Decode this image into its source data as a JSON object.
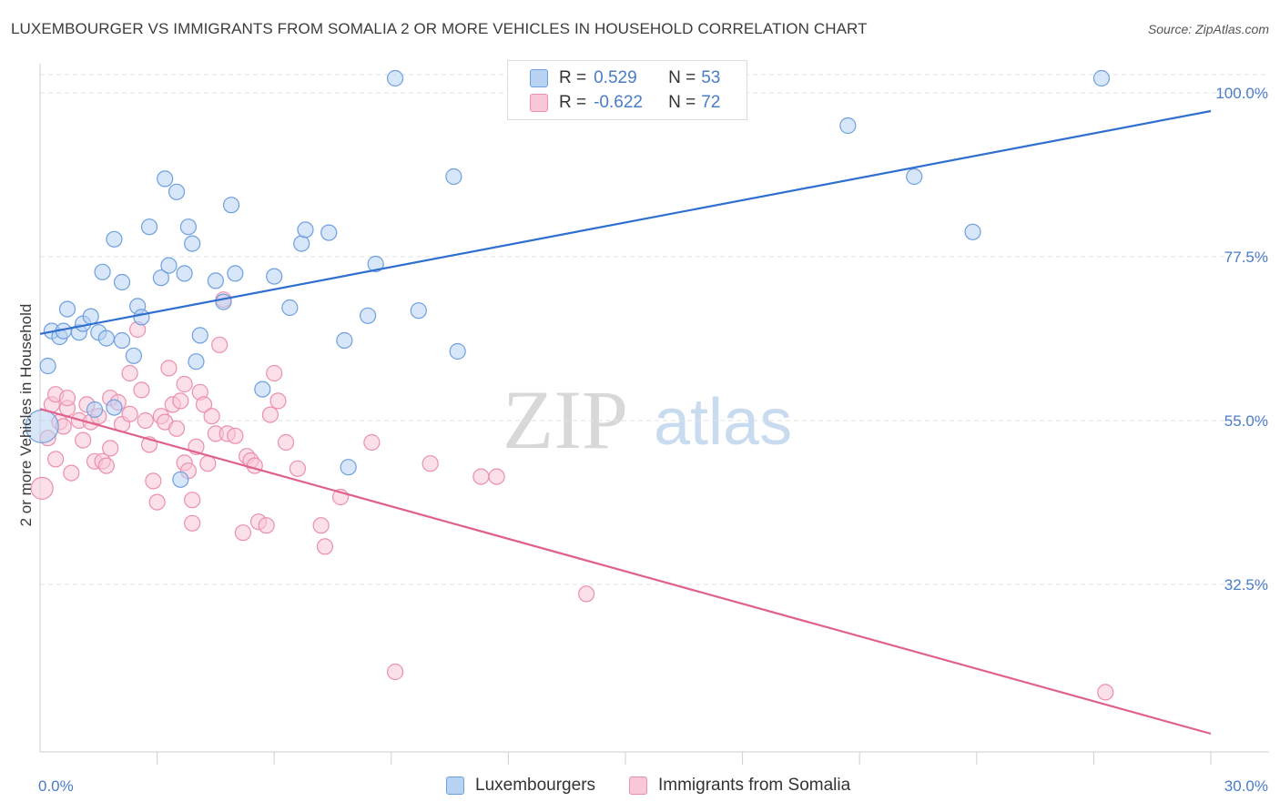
{
  "title": "LUXEMBOURGER VS IMMIGRANTS FROM SOMALIA 2 OR MORE VEHICLES IN HOUSEHOLD CORRELATION CHART",
  "source": "Source: ZipAtlas.com",
  "watermark": {
    "zip": "ZIP",
    "atlas": "atlas"
  },
  "legend_top": {
    "rows": [
      {
        "r_label": "R =",
        "r_value": "0.529",
        "n_label": "N =",
        "n_value": "53"
      },
      {
        "r_label": "R =",
        "r_value": "-0.622",
        "n_label": "N =",
        "n_value": "72"
      }
    ]
  },
  "legend_bottom": {
    "items": [
      {
        "label": "Luxembourgers"
      },
      {
        "label": "Immigrants from Somalia"
      }
    ]
  },
  "colors": {
    "blue_fill": "#b7d2f3",
    "blue_stroke": "#6f9fe0",
    "blue_line": "#2f6fcf",
    "pink_fill": "#f9c7d7",
    "pink_stroke": "#ec8fad",
    "pink_line": "#e0608e",
    "tick_text": "#4a7cc8",
    "grid": "#e2e2e2"
  },
  "chart_data": {
    "type": "scatter",
    "title": "LUXEMBOURGER VS IMMIGRANTS FROM SOMALIA 2 OR MORE VEHICLES IN HOUSEHOLD CORRELATION CHART",
    "xlabel": "",
    "ylabel": "2 or more Vehicles in Household",
    "xlim": [
      0,
      30
    ],
    "ylim": [
      9.5,
      104
    ],
    "x_tick_labels": [
      {
        "value": 0,
        "label": "0.0%"
      },
      {
        "value": 30,
        "label": "30.0%"
      }
    ],
    "y_tick_labels": [
      {
        "value": 100,
        "label": "100.0%"
      },
      {
        "value": 77.5,
        "label": "77.5%"
      },
      {
        "value": 55,
        "label": "55.0%"
      },
      {
        "value": 32.5,
        "label": "32.5%"
      }
    ],
    "grid": true,
    "legend_position": "top-center",
    "series": [
      {
        "name": "Luxembourgers",
        "color_key": "blue",
        "trend": {
          "x": [
            0,
            30
          ],
          "y": [
            66.9,
            97.5
          ]
        },
        "points": [
          [
            0.05,
            54.2
          ],
          [
            0.2,
            62.5
          ],
          [
            0.3,
            67.3
          ],
          [
            0.5,
            66.5
          ],
          [
            0.6,
            67.3
          ],
          [
            0.7,
            70.3
          ],
          [
            1.0,
            67.1
          ],
          [
            1.1,
            68.3
          ],
          [
            1.3,
            69.3
          ],
          [
            1.5,
            67.1
          ],
          [
            1.7,
            66.3
          ],
          [
            1.4,
            56.5
          ],
          [
            1.9,
            56.8
          ],
          [
            1.6,
            75.4
          ],
          [
            1.9,
            79.9
          ],
          [
            2.1,
            74.0
          ],
          [
            2.1,
            66.0
          ],
          [
            2.4,
            63.9
          ],
          [
            2.5,
            70.7
          ],
          [
            2.6,
            69.2
          ],
          [
            2.8,
            81.6
          ],
          [
            3.1,
            74.6
          ],
          [
            3.2,
            88.2
          ],
          [
            3.3,
            76.3
          ],
          [
            3.5,
            86.4
          ],
          [
            3.6,
            46.9
          ],
          [
            3.7,
            75.2
          ],
          [
            3.8,
            81.6
          ],
          [
            3.9,
            79.3
          ],
          [
            4.0,
            63.1
          ],
          [
            4.1,
            66.7
          ],
          [
            4.5,
            74.2
          ],
          [
            4.7,
            71.3
          ],
          [
            4.9,
            84.6
          ],
          [
            5.0,
            75.2
          ],
          [
            5.7,
            59.3
          ],
          [
            6.0,
            74.8
          ],
          [
            6.4,
            70.5
          ],
          [
            6.7,
            79.3
          ],
          [
            6.8,
            81.2
          ],
          [
            7.4,
            80.8
          ],
          [
            7.8,
            66.0
          ],
          [
            7.9,
            48.6
          ],
          [
            8.4,
            69.4
          ],
          [
            8.6,
            76.5
          ],
          [
            9.7,
            70.1
          ],
          [
            9.1,
            102.0
          ],
          [
            10.7,
            64.5
          ],
          [
            10.6,
            88.5
          ],
          [
            20.7,
            95.5
          ],
          [
            22.4,
            88.5
          ],
          [
            23.9,
            80.9
          ],
          [
            27.2,
            102.0
          ]
        ]
      },
      {
        "name": "Immigrants from Somalia",
        "color_key": "pink",
        "trend": {
          "x": [
            0,
            30
          ],
          "y": [
            56.6,
            12.0
          ]
        },
        "points": [
          [
            0.05,
            45.7
          ],
          [
            0.2,
            52.6
          ],
          [
            0.3,
            57.2
          ],
          [
            0.4,
            58.6
          ],
          [
            0.4,
            49.7
          ],
          [
            0.5,
            54.8
          ],
          [
            0.6,
            54.2
          ],
          [
            0.7,
            56.7
          ],
          [
            0.7,
            58.1
          ],
          [
            0.8,
            47.8
          ],
          [
            1.0,
            55.0
          ],
          [
            1.1,
            52.3
          ],
          [
            1.2,
            57.2
          ],
          [
            1.3,
            54.8
          ],
          [
            1.4,
            49.4
          ],
          [
            1.5,
            55.6
          ],
          [
            1.6,
            49.4
          ],
          [
            1.7,
            48.8
          ],
          [
            1.8,
            58.1
          ],
          [
            1.8,
            51.2
          ],
          [
            2.0,
            57.5
          ],
          [
            2.1,
            54.5
          ],
          [
            2.3,
            61.5
          ],
          [
            2.3,
            55.9
          ],
          [
            2.5,
            67.5
          ],
          [
            2.6,
            59.2
          ],
          [
            2.7,
            55.0
          ],
          [
            2.8,
            51.7
          ],
          [
            2.9,
            46.7
          ],
          [
            3.0,
            43.8
          ],
          [
            3.1,
            55.6
          ],
          [
            3.2,
            54.8
          ],
          [
            3.3,
            62.2
          ],
          [
            3.4,
            57.2
          ],
          [
            3.5,
            53.9
          ],
          [
            3.6,
            57.7
          ],
          [
            3.7,
            60.0
          ],
          [
            3.7,
            49.2
          ],
          [
            3.8,
            48.1
          ],
          [
            3.9,
            44.1
          ],
          [
            3.9,
            40.9
          ],
          [
            4.0,
            51.4
          ],
          [
            4.1,
            58.9
          ],
          [
            4.2,
            57.2
          ],
          [
            4.3,
            49.1
          ],
          [
            4.4,
            55.6
          ],
          [
            4.5,
            53.2
          ],
          [
            4.6,
            65.4
          ],
          [
            4.7,
            71.6
          ],
          [
            4.8,
            53.2
          ],
          [
            5.0,
            52.9
          ],
          [
            5.2,
            39.6
          ],
          [
            5.3,
            50.1
          ],
          [
            5.4,
            49.5
          ],
          [
            5.5,
            48.8
          ],
          [
            5.6,
            41.1
          ],
          [
            5.8,
            40.6
          ],
          [
            5.9,
            55.8
          ],
          [
            6.0,
            61.5
          ],
          [
            6.1,
            57.7
          ],
          [
            6.3,
            52.0
          ],
          [
            6.6,
            48.4
          ],
          [
            7.2,
            40.6
          ],
          [
            7.3,
            37.7
          ],
          [
            7.7,
            44.5
          ],
          [
            8.5,
            52.0
          ],
          [
            9.1,
            20.5
          ],
          [
            10.0,
            49.1
          ],
          [
            11.3,
            47.3
          ],
          [
            11.7,
            47.3
          ],
          [
            14.0,
            31.2
          ],
          [
            27.3,
            17.7
          ]
        ]
      }
    ]
  }
}
